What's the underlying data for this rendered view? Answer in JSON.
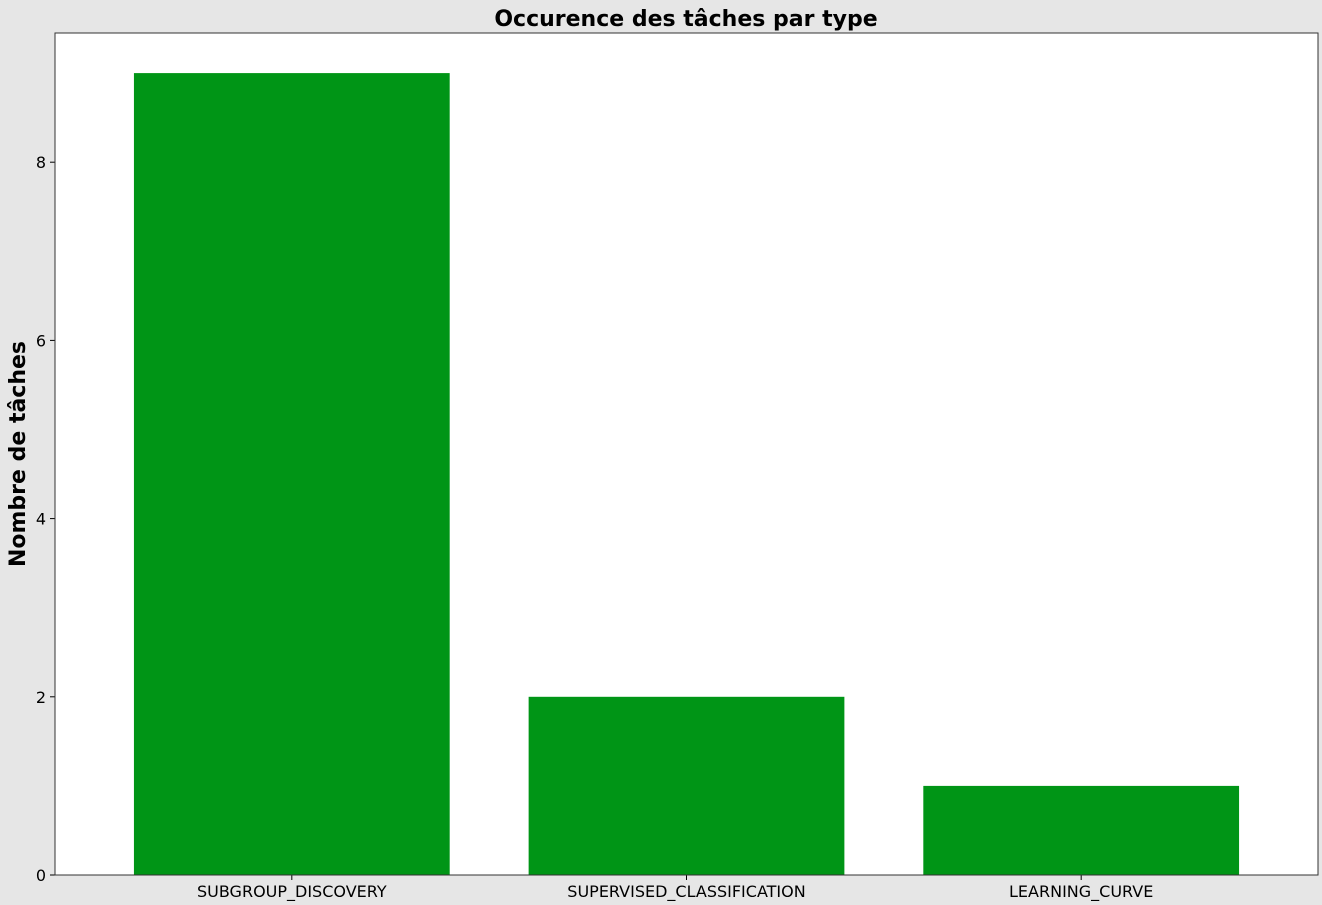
{
  "chart_data": {
    "type": "bar",
    "title": "Occurence des tâches par type",
    "xlabel": "",
    "ylabel": "Nombre de tâches",
    "categories": [
      "SUBGROUP_DISCOVERY",
      "SUPERVISED_CLASSIFICATION",
      "LEARNING_CURVE"
    ],
    "values": [
      9,
      2,
      1
    ],
    "ylim": [
      0,
      9.45
    ],
    "yticks": [
      0,
      2,
      4,
      6,
      8
    ],
    "bar_color": "#009516",
    "grid": false,
    "legend": "none"
  },
  "colors": {
    "figure_background": "#e6e6e6",
    "plot_background": "#ffffff",
    "axes_edge": "#000000",
    "bar": "#009516"
  }
}
